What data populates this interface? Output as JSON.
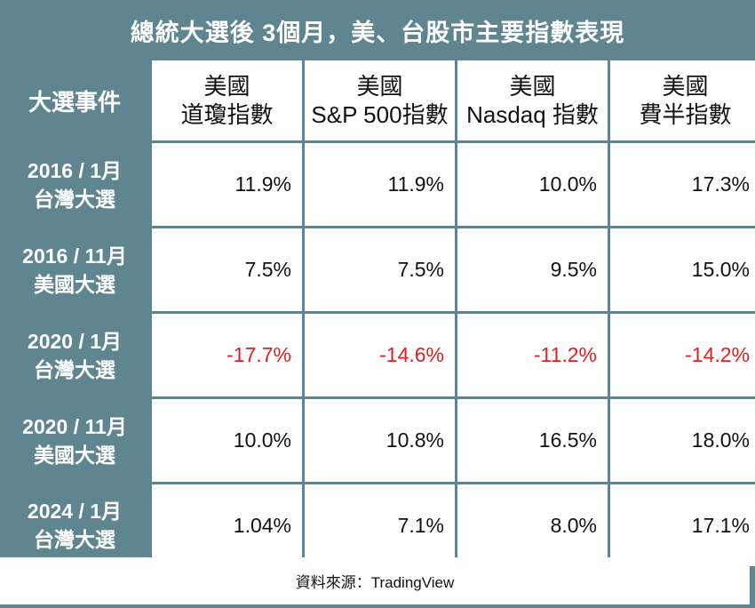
{
  "title": "總統大選後 3個月，美、台股市主要指數表現",
  "chart_data": {
    "type": "table",
    "corner_label": "大選事件",
    "columns": [
      {
        "line1": "美國",
        "line2": "道瓊指數"
      },
      {
        "line1": "美國",
        "line2": "S&P 500指數"
      },
      {
        "line1": "美國",
        "line2": "Nasdaq 指數"
      },
      {
        "line1": "美國",
        "line2": "費半指數"
      }
    ],
    "rows": [
      {
        "line1": "2016 / 1月",
        "line2": "台灣大選",
        "values": [
          "11.9%",
          "11.9%",
          "10.0%",
          "17.3%"
        ],
        "negative": [
          false,
          false,
          false,
          false
        ]
      },
      {
        "line1": "2016 / 11月",
        "line2": "美國大選",
        "values": [
          "7.5%",
          "7.5%",
          "9.5%",
          "15.0%"
        ],
        "negative": [
          false,
          false,
          false,
          false
        ]
      },
      {
        "line1": "2020 / 1月",
        "line2": "台灣大選",
        "values": [
          "-17.7%",
          "-14.6%",
          "-11.2%",
          "-14.2%"
        ],
        "negative": [
          true,
          true,
          true,
          true
        ]
      },
      {
        "line1": "2020 / 11月",
        "line2": "美國大選",
        "values": [
          "10.0%",
          "10.8%",
          "16.5%",
          "18.0%"
        ],
        "negative": [
          false,
          false,
          false,
          false
        ]
      },
      {
        "line1": "2024 / 1月",
        "line2": "台灣大選",
        "values": [
          "1.04%",
          "7.1%",
          "8.0%",
          "17.1%"
        ],
        "negative": [
          false,
          false,
          false,
          false
        ]
      }
    ]
  },
  "source": "資料來源：TradingView",
  "colors": {
    "background": "#5f8690",
    "negative": "#e02020",
    "text": "#111111"
  }
}
